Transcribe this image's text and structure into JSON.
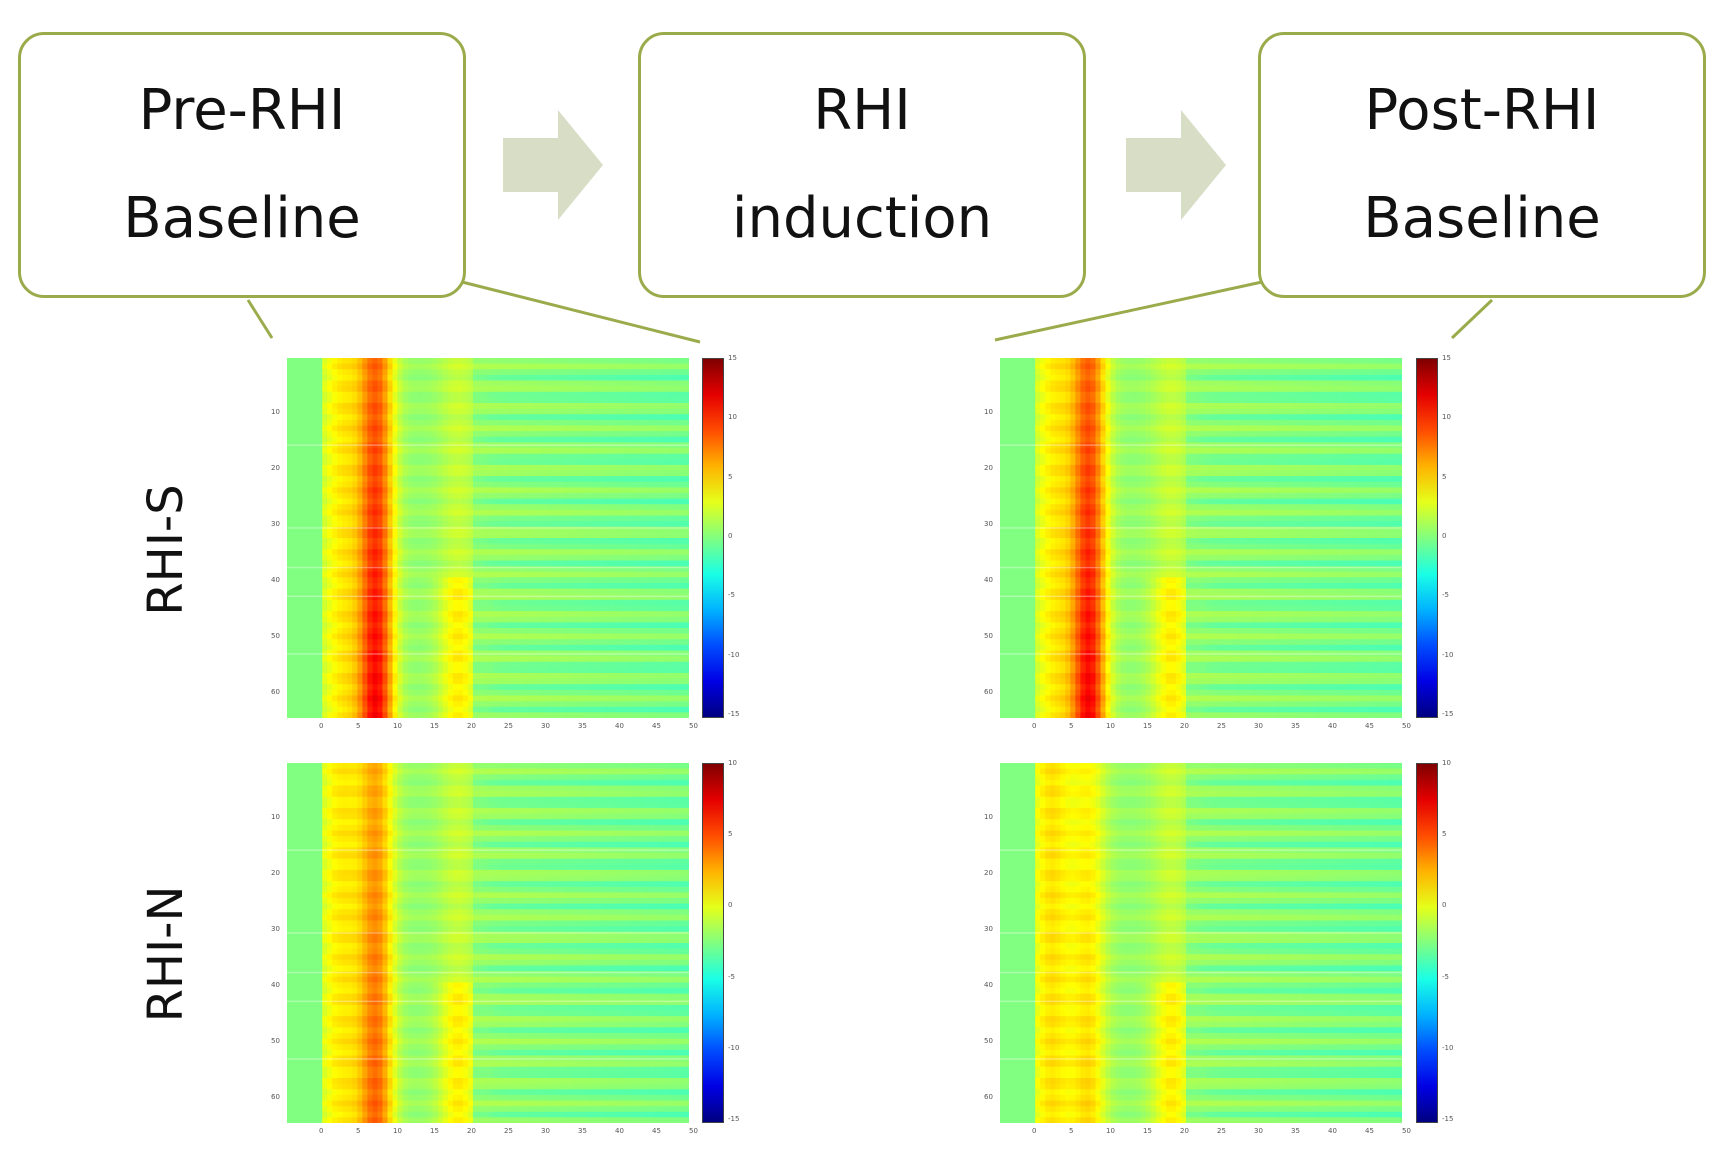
{
  "stages": [
    {
      "id": "pre",
      "lines": [
        "Pre-RHI",
        "Baseline"
      ]
    },
    {
      "id": "rhi",
      "lines": [
        "RHI",
        "induction"
      ]
    },
    {
      "id": "post",
      "lines": [
        "Post-RHI",
        "Baseline"
      ]
    }
  ],
  "rows": [
    {
      "id": "rhi-s",
      "label": "RHI-S"
    },
    {
      "id": "rhi-n",
      "label": "RHI-N"
    }
  ],
  "columns": [
    {
      "id": "pre"
    },
    {
      "id": "post"
    }
  ],
  "colors": {
    "box_border": "#9aab4c",
    "arrow": "#d8dec6",
    "colormap": "jet"
  },
  "heatmap": {
    "x_ticks": [
      "0",
      "5",
      "10",
      "15",
      "20",
      "25",
      "30",
      "35",
      "40",
      "45",
      "50"
    ],
    "y_ticks": [
      "10",
      "20",
      "30",
      "40",
      "50",
      "60"
    ],
    "cbar_ticks_s": [
      "15",
      "10",
      "5",
      "0",
      "-5",
      "-10",
      "-15"
    ],
    "cbar_ticks_n": [
      "10",
      "5",
      "0",
      "-5",
      "-10",
      "-15"
    ]
  }
}
